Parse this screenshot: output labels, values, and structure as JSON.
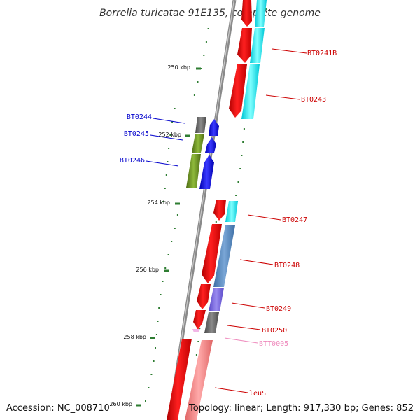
{
  "map": {
    "title": "Borrelia turicatae 91E135, complete genome",
    "accession": "Accession: NC_008710",
    "summary": "Topology: linear; Length: 917,330 bp; Genes: 852"
  },
  "ticks": [
    {
      "label": "250 kbp"
    },
    {
      "label": "252 kbp"
    },
    {
      "label": "254 kbp"
    },
    {
      "label": "256 kbp"
    },
    {
      "label": "258 kbp"
    },
    {
      "label": "260 kbp"
    }
  ],
  "genes": [
    {
      "label": "BT0241B",
      "color": "#cc0000"
    },
    {
      "label": "BT0243",
      "color": "#cc0000"
    },
    {
      "label": "BT0244",
      "color": "#0000cc"
    },
    {
      "label": "BT0245",
      "color": "#0000cc"
    },
    {
      "label": "BT0246",
      "color": "#0000cc"
    },
    {
      "label": "BT0247",
      "color": "#cc0000"
    },
    {
      "label": "BT0248",
      "color": "#cc0000"
    },
    {
      "label": "BT0249",
      "color": "#cc0000"
    },
    {
      "label": "BT0250",
      "color": "#cc0000"
    },
    {
      "label": "BTT0005",
      "color": "#ee88bb"
    },
    {
      "label": "leuS",
      "color": "#cc0000"
    }
  ],
  "colors": {
    "cds": "#ee0000",
    "trna": "#ff8888",
    "cyan_feature": "#00e5ee",
    "steel_feature": "#4f81b8",
    "violet_feature": "#7766dd",
    "gray_feature": "#666666",
    "olive_feature": "#6b8e23",
    "blue_feature": "#0000ee",
    "backbone": "#888888",
    "gc_dots": "#2e7d32"
  }
}
